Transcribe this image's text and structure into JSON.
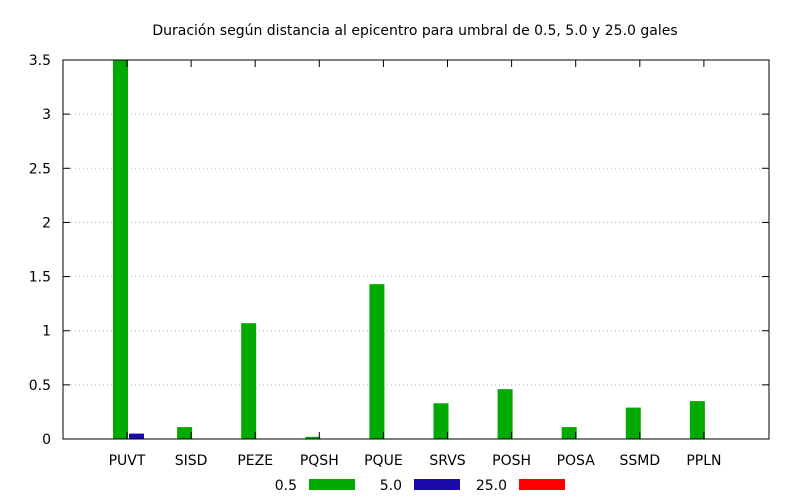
{
  "chart_data": {
    "type": "bar",
    "title": "Duración según distancia al epicentro para umbral de 0.5, 5.0 y 25.0 gales",
    "xlabel": "",
    "ylabel": "",
    "categories": [
      "PUVT",
      "SISD",
      "PEZE",
      "PQSH",
      "PQUE",
      "SRVS",
      "POSH",
      "POSA",
      "SSMD",
      "PPLN"
    ],
    "series": [
      {
        "name": "0.5",
        "color": "#00aa00",
        "values": [
          3.5,
          0.11,
          1.07,
          0.02,
          1.43,
          0.33,
          0.46,
          0.11,
          0.29,
          0.35
        ]
      },
      {
        "name": "5.0",
        "color": "#1a0aaa",
        "values": [
          0.05,
          0,
          0,
          0,
          0,
          0,
          0,
          0,
          0,
          0
        ]
      },
      {
        "name": "25.0",
        "color": "#ff0000",
        "values": [
          0,
          0,
          0,
          0,
          0,
          0,
          0,
          0,
          0,
          0
        ]
      }
    ],
    "ylim": [
      0,
      3.5
    ],
    "yticks": [
      "0",
      "0.5",
      "1",
      "1.5",
      "2",
      "2.5",
      "3",
      "3.5"
    ],
    "grid": true,
    "legend": "bottom"
  }
}
